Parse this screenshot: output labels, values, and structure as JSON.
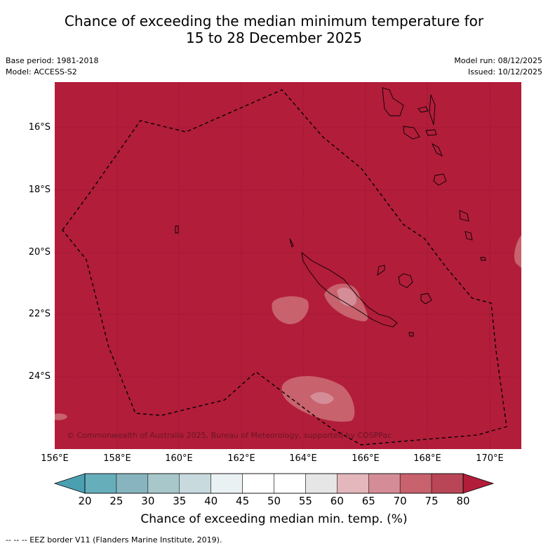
{
  "title": {
    "line1": "Chance of exceeding the median minimum temperature for",
    "line2": "15 to 28 December 2025"
  },
  "meta": {
    "base_period": "Base period: 1981-2018",
    "model": "Model: ACCESS-S2",
    "model_run": "Model run: 08/12/2025",
    "issued": "Issued: 10/12/2025"
  },
  "map": {
    "lat_labels": [
      "16°S",
      "18°S",
      "20°S",
      "22°S",
      "24°S"
    ],
    "lon_labels": [
      "156°E",
      "158°E",
      "160°E",
      "162°E",
      "164°E",
      "166°E",
      "168°E",
      "170°E"
    ],
    "copyright": "© Commonwealth of Australia 2025, Bureau of Meteorology, supported by COSPPac",
    "fill_color": "#b21d3a",
    "features": [
      "eez-border",
      "new-caledonia",
      "vanuatu",
      "loyalty-islands"
    ]
  },
  "colorbar": {
    "ticks": [
      "20",
      "25",
      "30",
      "35",
      "40",
      "45",
      "50",
      "55",
      "60",
      "65",
      "70",
      "75",
      "80"
    ],
    "colors": [
      "#67aebb",
      "#87b4bf",
      "#a8c7cb",
      "#c8dadd",
      "#eaf1f3",
      "#ffffff",
      "#ffffff",
      "#e6e6e6",
      "#e3b7bc",
      "#d48d96",
      "#c8626d",
      "#b84656"
    ],
    "low_color": "#4aa0b1",
    "high_color": "#b21d3a",
    "label": "Chance of exceeding median min. temp. (%)"
  },
  "footer": "--  --  -- EEZ border V11 (Flanders Marine Institute, 2019)."
}
